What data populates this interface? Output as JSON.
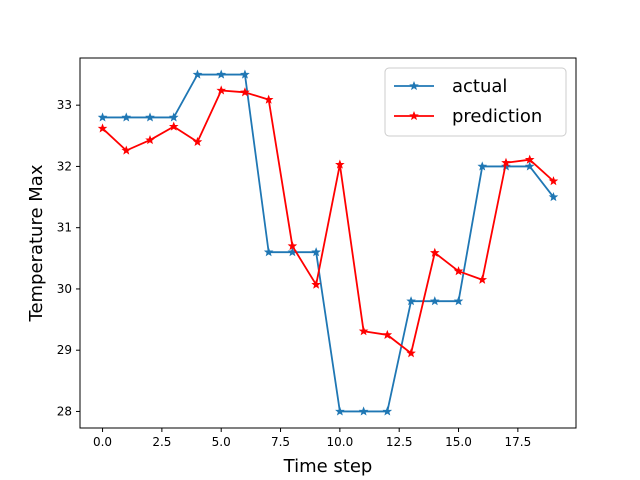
{
  "chart_data": {
    "type": "line",
    "xlabel": "Time step",
    "ylabel": "Temperature Max",
    "xlim": [
      -0.95,
      19.95
    ],
    "ylim": [
      27.73,
      33.77
    ],
    "xticks": [
      0.0,
      2.5,
      5.0,
      7.5,
      10.0,
      12.5,
      15.0,
      17.5
    ],
    "xtick_labels": [
      "0.0",
      "2.5",
      "5.0",
      "7.5",
      "10.0",
      "12.5",
      "15.0",
      "17.5"
    ],
    "yticks": [
      28,
      29,
      30,
      31,
      32,
      33
    ],
    "ytick_labels": [
      "28",
      "29",
      "30",
      "31",
      "32",
      "33"
    ],
    "grid": false,
    "legend_position": "top-right",
    "x": [
      0,
      1,
      2,
      3,
      4,
      5,
      6,
      7,
      8,
      9,
      10,
      11,
      12,
      13,
      14,
      15,
      16,
      17,
      18,
      19
    ],
    "series": [
      {
        "name": "actual",
        "color": "#1f77b4",
        "marker": "star",
        "values": [
          32.8,
          32.8,
          32.8,
          32.8,
          33.5,
          33.5,
          33.5,
          30.6,
          30.6,
          30.6,
          28.0,
          28.0,
          28.0,
          29.8,
          29.8,
          29.8,
          32.0,
          32.0,
          32.0,
          31.5
        ]
      },
      {
        "name": "prediction",
        "color": "#ff0000",
        "marker": "star",
        "values": [
          32.62,
          32.26,
          32.43,
          32.65,
          32.4,
          33.24,
          33.21,
          33.09,
          30.7,
          30.07,
          32.03,
          29.31,
          29.25,
          28.95,
          30.59,
          30.29,
          30.15,
          32.06,
          32.11,
          31.76
        ]
      }
    ]
  }
}
